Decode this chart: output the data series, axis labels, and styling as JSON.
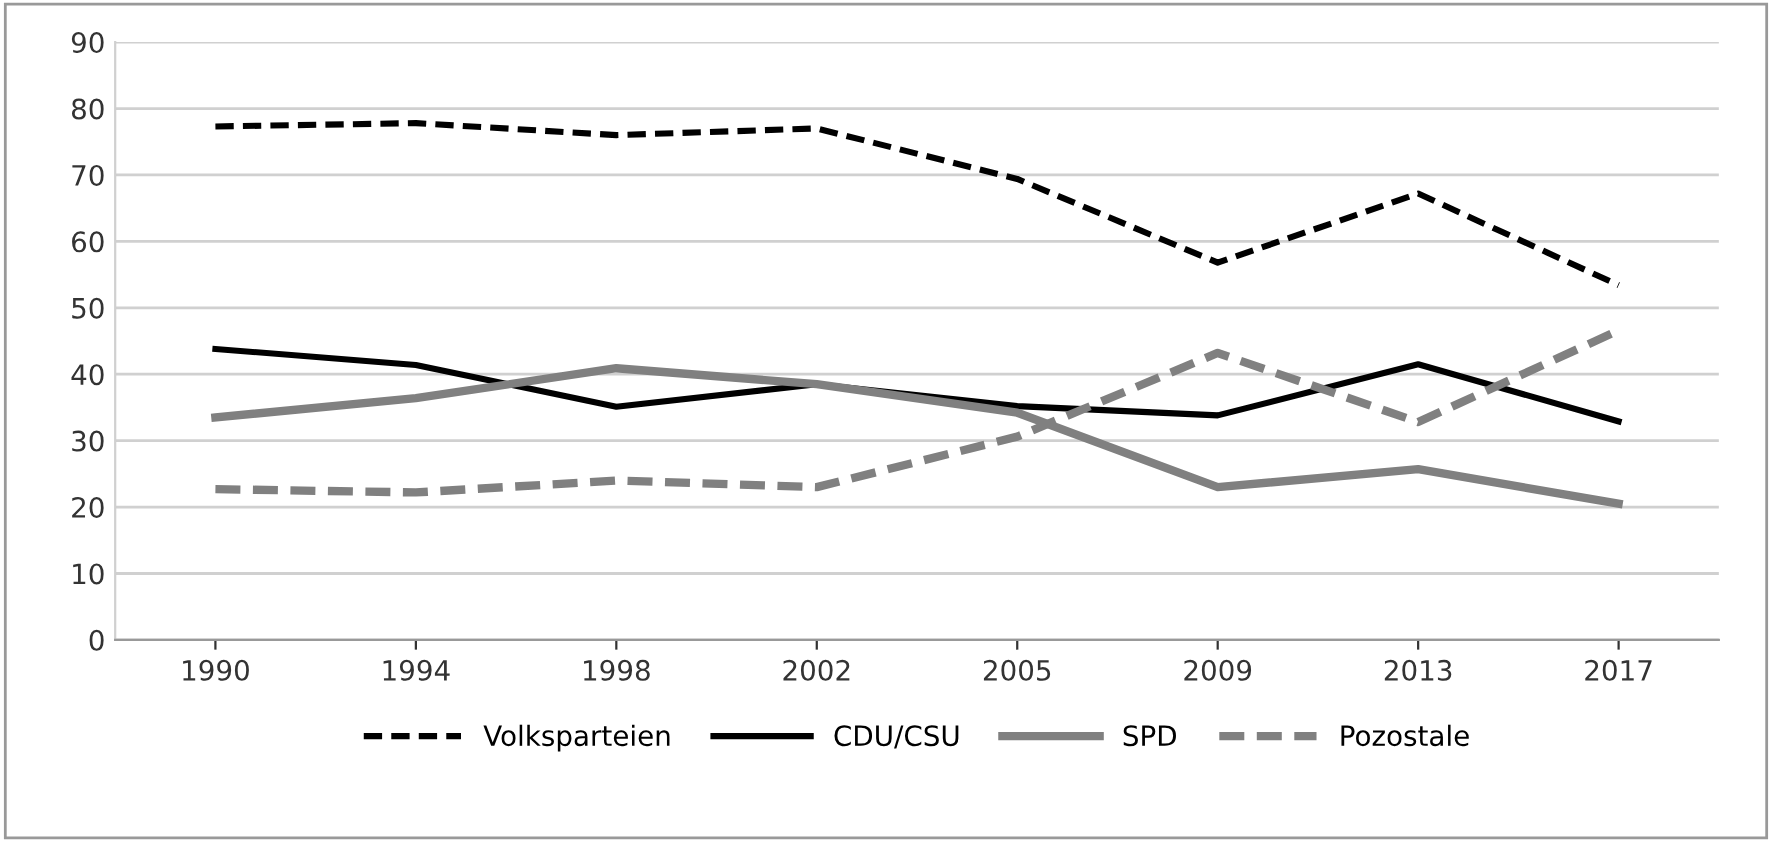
{
  "chart_data": {
    "type": "line",
    "categories": [
      "1990",
      "1994",
      "1998",
      "2002",
      "2005",
      "2009",
      "2013",
      "2017"
    ],
    "series": [
      {
        "name": "Volksparteien",
        "color": "#000000",
        "line_style": "dashed",
        "values": [
          77.3,
          77.8,
          76,
          77,
          69.4,
          56.8,
          67.2,
          53.4
        ]
      },
      {
        "name": "CDU/CSU",
        "color": "#000000",
        "line_style": "solid",
        "values": [
          43.8,
          41.4,
          35.1,
          38.5,
          35.2,
          33.8,
          41.5,
          32.9
        ]
      },
      {
        "name": "SPD",
        "color": "#808080",
        "line_style": "solid",
        "values": [
          33.5,
          36.4,
          40.9,
          38.5,
          34.2,
          23,
          25.7,
          20.5
        ]
      },
      {
        "name": "Pozostale",
        "color": "#808080",
        "line_style": "dashed",
        "values": [
          22.7,
          22.2,
          24,
          23,
          30.6,
          43.2,
          32.8,
          46.6
        ]
      }
    ],
    "ylim": [
      0,
      90
    ],
    "yticks": [
      0,
      10,
      20,
      30,
      40,
      50,
      60,
      70,
      80,
      90
    ],
    "grid": "y",
    "legend": "bottom"
  }
}
